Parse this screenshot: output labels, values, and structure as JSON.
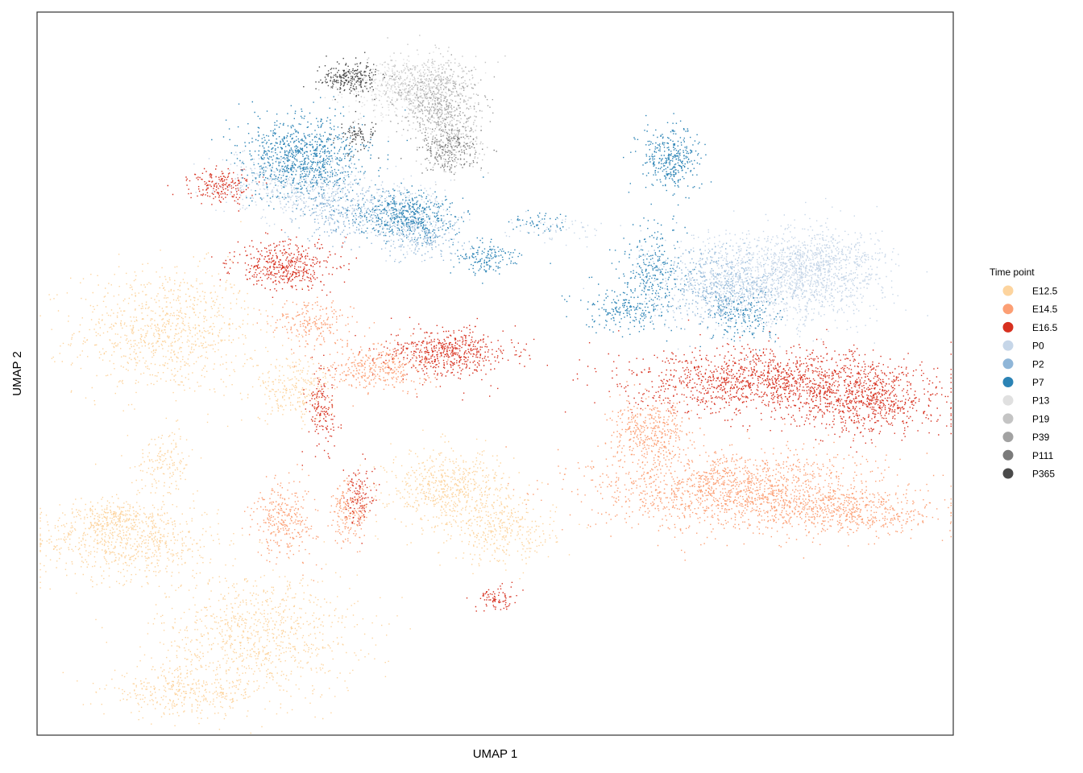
{
  "chart_data": {
    "type": "scatter",
    "title": "",
    "xlabel": "UMAP 1",
    "ylabel": "UMAP 2",
    "xlim": [
      0,
      100
    ],
    "ylim": [
      0,
      100
    ],
    "grid": false,
    "ticks": false,
    "legend": {
      "title": "Time point",
      "placement": "right",
      "entries": [
        "E12.5",
        "E14.5",
        "E16.5",
        "P0",
        "P2",
        "P7",
        "P13",
        "P19",
        "P39",
        "P111",
        "P365"
      ]
    },
    "colors": {
      "E12.5": "#fdd49e",
      "E14.5": "#fc9f74",
      "E16.5": "#d7301f",
      "P0": "#c6d6e8",
      "P2": "#8fb6d8",
      "P7": "#2b83b5",
      "P13": "#e0e0e0",
      "P19": "#c4c4c4",
      "P39": "#a2a2a2",
      "P111": "#7a7a7a",
      "P365": "#4a4a4a"
    },
    "series": [
      {
        "name": "E12.5",
        "clusters": [
          {
            "cx": 14,
            "cy": 56,
            "rx": 9,
            "ry": 8,
            "n": 900
          },
          {
            "cx": 10,
            "cy": 27,
            "rx": 9,
            "ry": 5,
            "n": 700
          },
          {
            "cx": 24,
            "cy": 14,
            "rx": 10,
            "ry": 8,
            "n": 900
          },
          {
            "cx": 8,
            "cy": 30,
            "rx": 5,
            "ry": 2,
            "n": 200
          },
          {
            "cx": 16,
            "cy": 6,
            "rx": 8,
            "ry": 3,
            "n": 350
          },
          {
            "cx": 45,
            "cy": 34,
            "rx": 6,
            "ry": 5,
            "n": 650
          },
          {
            "cx": 51,
            "cy": 28,
            "rx": 5,
            "ry": 4,
            "n": 300
          },
          {
            "cx": 28,
            "cy": 48,
            "rx": 4,
            "ry": 4,
            "n": 250
          },
          {
            "cx": 14,
            "cy": 38,
            "rx": 3,
            "ry": 4,
            "n": 150
          }
        ]
      },
      {
        "name": "E14.5",
        "clusters": [
          {
            "cx": 76,
            "cy": 34,
            "rx": 14,
            "ry": 5,
            "n": 1500
          },
          {
            "cx": 89,
            "cy": 31,
            "rx": 9,
            "ry": 3,
            "n": 500
          },
          {
            "cx": 67,
            "cy": 42,
            "rx": 4,
            "ry": 4,
            "n": 400
          },
          {
            "cx": 37,
            "cy": 51,
            "rx": 5,
            "ry": 3,
            "n": 350
          },
          {
            "cx": 27,
            "cy": 30,
            "rx": 3,
            "ry": 5,
            "n": 300
          },
          {
            "cx": 34,
            "cy": 31,
            "rx": 2,
            "ry": 4,
            "n": 180
          },
          {
            "cx": 30,
            "cy": 57,
            "rx": 4,
            "ry": 3,
            "n": 200
          }
        ]
      },
      {
        "name": "E16.5",
        "clusters": [
          {
            "cx": 80,
            "cy": 49,
            "rx": 14,
            "ry": 4,
            "n": 1400
          },
          {
            "cx": 91,
            "cy": 46,
            "rx": 7,
            "ry": 4,
            "n": 600
          },
          {
            "cx": 45,
            "cy": 53,
            "rx": 6,
            "ry": 3,
            "n": 550
          },
          {
            "cx": 27,
            "cy": 65,
            "rx": 5,
            "ry": 3,
            "n": 450
          },
          {
            "cx": 20,
            "cy": 76,
            "rx": 3,
            "ry": 2,
            "n": 200
          },
          {
            "cx": 31,
            "cy": 45,
            "rx": 1.5,
            "ry": 5,
            "n": 150
          },
          {
            "cx": 35,
            "cy": 33,
            "rx": 1.5,
            "ry": 4,
            "n": 120
          },
          {
            "cx": 50,
            "cy": 19,
            "rx": 2,
            "ry": 1.5,
            "n": 80
          }
        ]
      },
      {
        "name": "P0",
        "clusters": [
          {
            "cx": 80,
            "cy": 63,
            "rx": 10,
            "ry": 6,
            "n": 1300
          },
          {
            "cx": 86,
            "cy": 65,
            "rx": 6,
            "ry": 5,
            "n": 600
          },
          {
            "cx": 28,
            "cy": 76,
            "rx": 7,
            "ry": 4,
            "n": 450
          },
          {
            "cx": 40,
            "cy": 72,
            "rx": 5,
            "ry": 4,
            "n": 300
          },
          {
            "cx": 56,
            "cy": 70,
            "rx": 5,
            "ry": 1.5,
            "n": 60
          }
        ]
      },
      {
        "name": "P2",
        "clusters": [
          {
            "cx": 74,
            "cy": 62,
            "rx": 6,
            "ry": 5,
            "n": 500
          },
          {
            "cx": 33,
            "cy": 73,
            "rx": 5,
            "ry": 4,
            "n": 300
          },
          {
            "cx": 42,
            "cy": 69,
            "rx": 4,
            "ry": 3,
            "n": 200
          }
        ]
      },
      {
        "name": "P7",
        "clusters": [
          {
            "cx": 29,
            "cy": 80,
            "rx": 6,
            "ry": 5,
            "n": 900
          },
          {
            "cx": 40,
            "cy": 72,
            "rx": 5,
            "ry": 3,
            "n": 500
          },
          {
            "cx": 49,
            "cy": 66,
            "rx": 3,
            "ry": 2,
            "n": 150
          },
          {
            "cx": 69,
            "cy": 80,
            "rx": 3,
            "ry": 4,
            "n": 350
          },
          {
            "cx": 67,
            "cy": 64,
            "rx": 3,
            "ry": 6,
            "n": 250
          },
          {
            "cx": 64,
            "cy": 59,
            "rx": 4,
            "ry": 3,
            "n": 200
          },
          {
            "cx": 77,
            "cy": 58,
            "rx": 4,
            "ry": 3,
            "n": 180
          },
          {
            "cx": 55,
            "cy": 71,
            "rx": 3,
            "ry": 1.5,
            "n": 50
          }
        ]
      },
      {
        "name": "P13",
        "clusters": [
          {
            "cx": 40,
            "cy": 89,
            "rx": 6,
            "ry": 4,
            "n": 350
          }
        ]
      },
      {
        "name": "P19",
        "clusters": [
          {
            "cx": 42,
            "cy": 90,
            "rx": 5,
            "ry": 4,
            "n": 450
          },
          {
            "cx": 45,
            "cy": 82,
            "rx": 3,
            "ry": 4,
            "n": 250
          }
        ]
      },
      {
        "name": "P39",
        "clusters": [
          {
            "cx": 44,
            "cy": 87,
            "rx": 4,
            "ry": 4,
            "n": 350
          }
        ]
      },
      {
        "name": "P111",
        "clusters": [
          {
            "cx": 45,
            "cy": 81,
            "rx": 3,
            "ry": 3,
            "n": 200
          }
        ]
      },
      {
        "name": "P365",
        "clusters": [
          {
            "cx": 34,
            "cy": 91,
            "rx": 3,
            "ry": 2,
            "n": 250
          },
          {
            "cx": 35,
            "cy": 83,
            "rx": 2,
            "ry": 2,
            "n": 80
          }
        ]
      }
    ]
  }
}
